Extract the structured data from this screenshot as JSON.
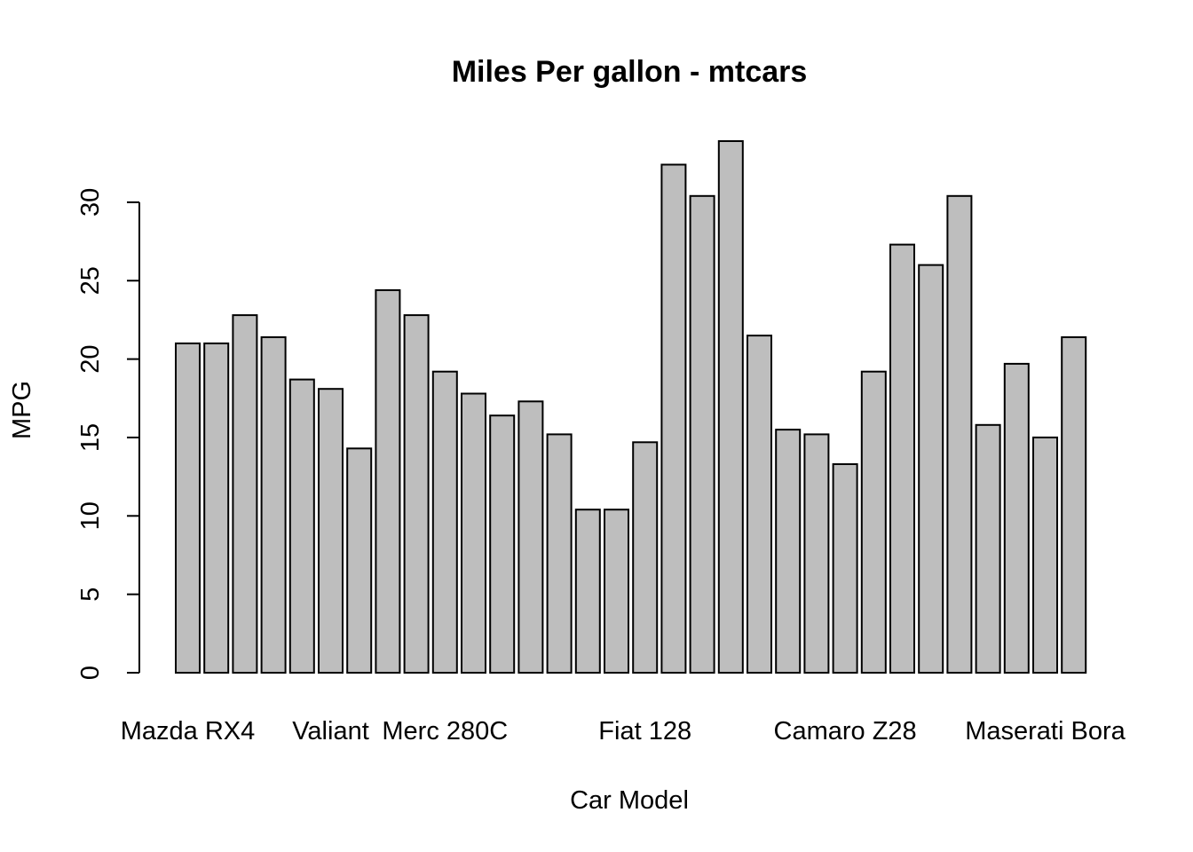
{
  "chart_data": {
    "type": "bar",
    "title": "Miles Per gallon - mtcars",
    "xlabel": "Car Model",
    "ylabel": "MPG",
    "ylim": [
      0,
      34
    ],
    "yticks": [
      0,
      5,
      10,
      15,
      20,
      25,
      30
    ],
    "ytick_labels": [
      "0",
      "5",
      "10",
      "15",
      "20",
      "25",
      "30"
    ],
    "bar_color": "#bebebe",
    "border_color": "#000000",
    "grid": false,
    "categories": [
      "Mazda RX4",
      "",
      "",
      "",
      "",
      "Valiant",
      "",
      "",
      "",
      "Merc 280C",
      "",
      "",
      "",
      "",
      "",
      "",
      "Fiat 128",
      "",
      "",
      "",
      "",
      "",
      "",
      "Camaro Z28",
      "",
      "",
      "",
      "",
      "",
      "",
      "Maserati Bora",
      ""
    ],
    "values": [
      21.0,
      21.0,
      22.8,
      21.4,
      18.7,
      18.1,
      14.3,
      24.4,
      22.8,
      19.2,
      17.8,
      16.4,
      17.3,
      15.2,
      10.4,
      10.4,
      14.7,
      32.4,
      30.4,
      33.9,
      21.5,
      15.5,
      15.2,
      13.3,
      19.2,
      27.3,
      26.0,
      30.4,
      15.8,
      19.7,
      15.0,
      21.4
    ]
  }
}
